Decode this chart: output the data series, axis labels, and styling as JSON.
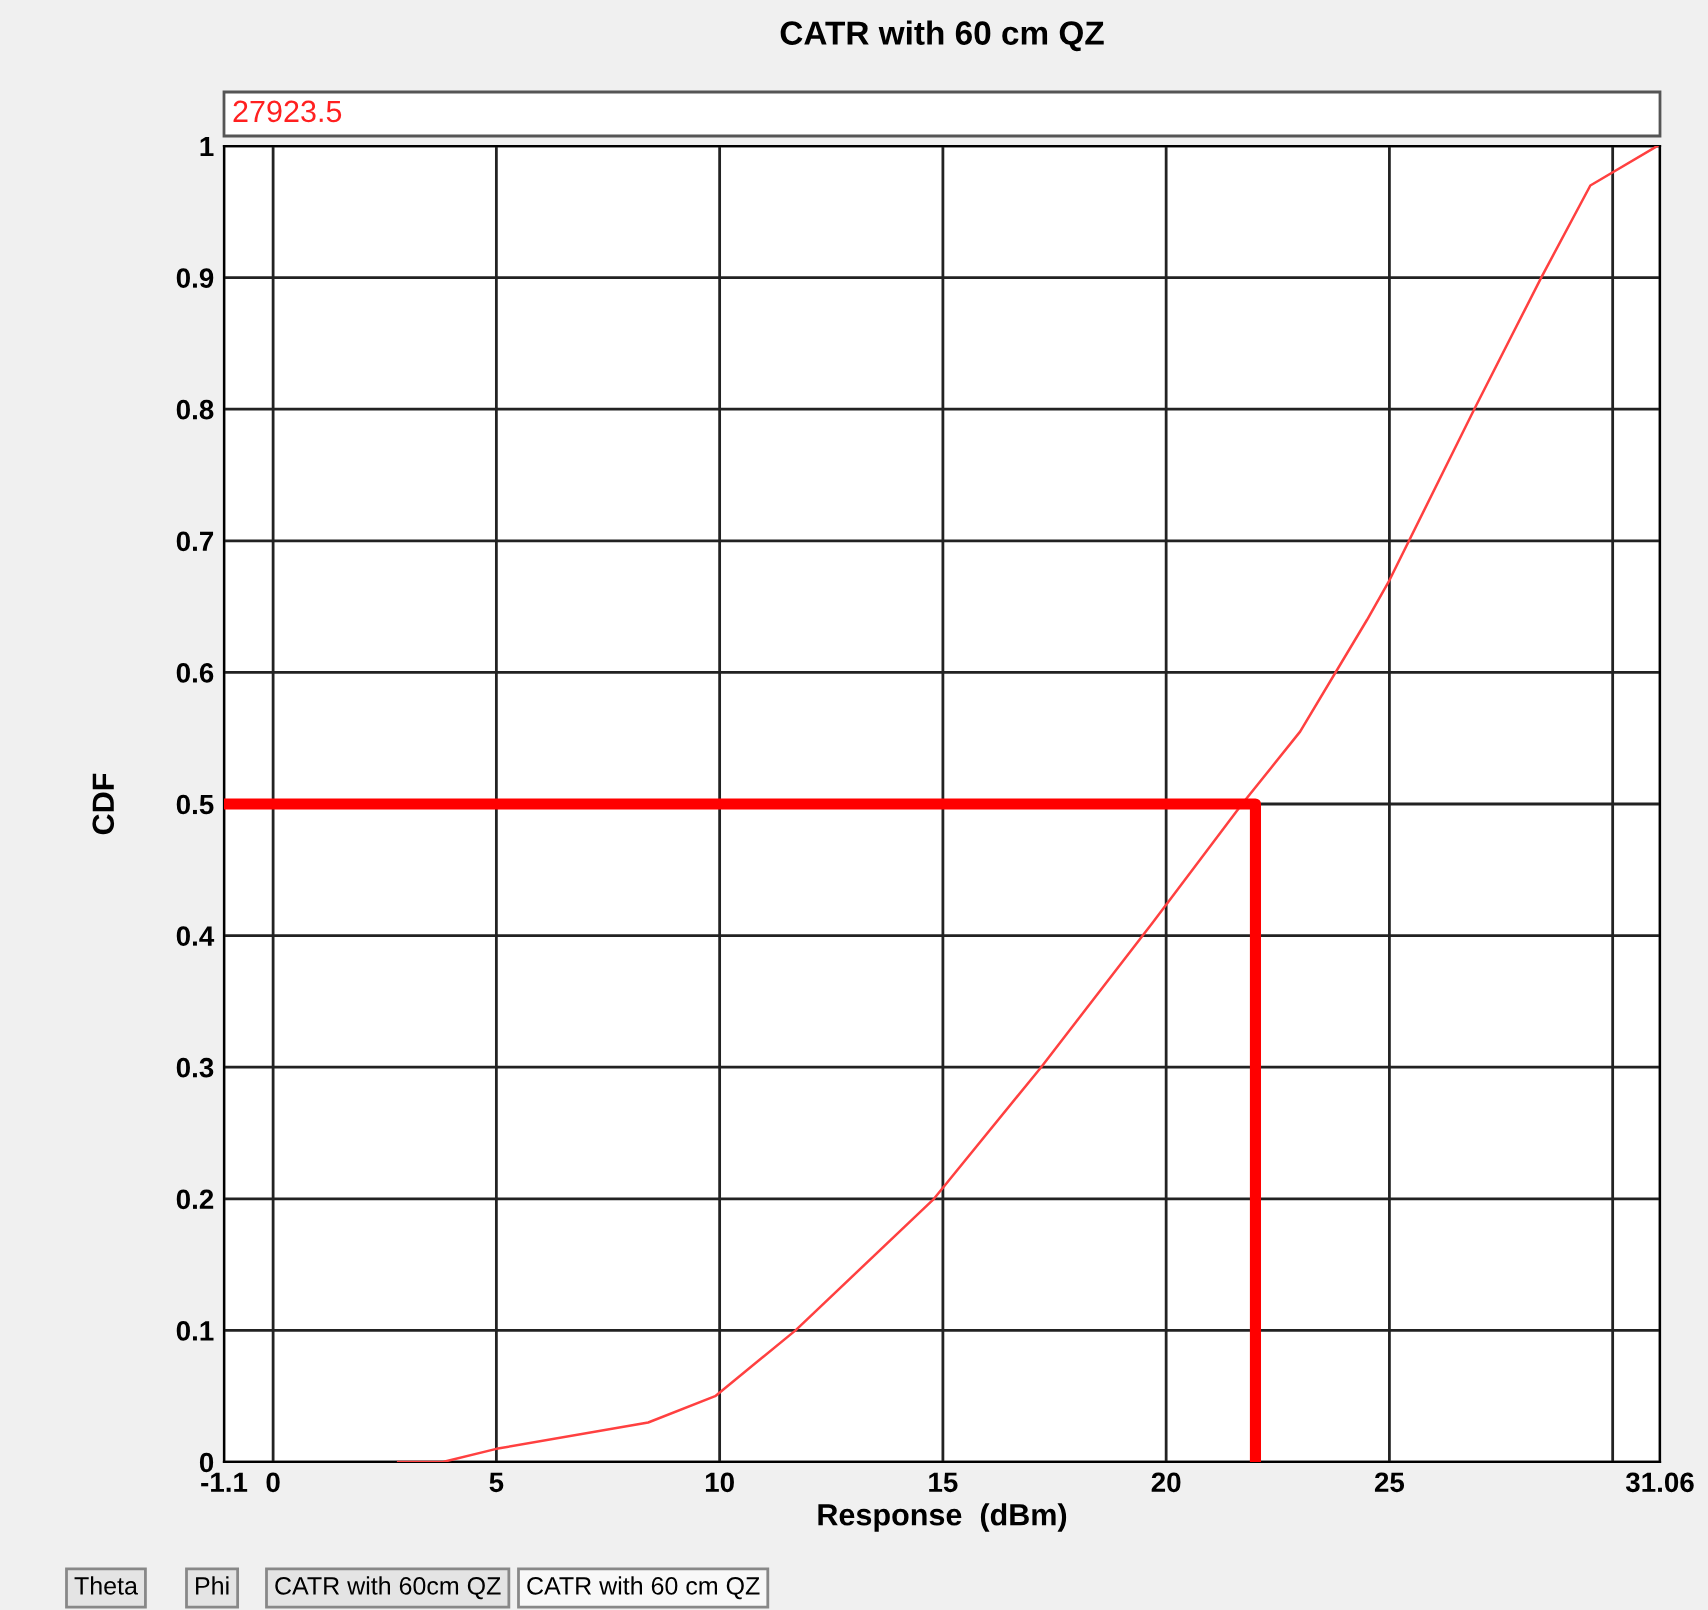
{
  "chart_data": {
    "type": "line",
    "title": "CATR with 60 cm QZ",
    "xlabel": "Response  (dBm)",
    "ylabel": "CDF",
    "annotations": [
      "27923.5",
      "Theta",
      "Phi",
      "CATR with 60cm QZ",
      "CATR with 60 cm QZ"
    ],
    "xlim": [
      -1.1,
      31.06
    ],
    "ylim": [
      0,
      1
    ],
    "xticks": [
      {
        "value": -1.1,
        "label": "-1.1"
      },
      0,
      5,
      10,
      15,
      20,
      25,
      {
        "value": 30,
        "label": null
      },
      {
        "value": 31.06,
        "label": "31.06"
      }
    ],
    "yticks": [
      0,
      0.1,
      0.2,
      0.3,
      0.4,
      0.5,
      0.6,
      0.7,
      0.8,
      0.9,
      1
    ],
    "grid": true,
    "marker": "none",
    "line_style": "solid",
    "series": [
      {
        "color": "#ff4040",
        "x": [
          2.8,
          3.8,
          5.0,
          8.4,
          9.9,
          11.7,
          14.8,
          17.2,
          19.7,
          21.7,
          23.0,
          24.5,
          25.0,
          26.9,
          28.4,
          29.5,
          31.0
        ],
        "values": [
          0,
          0,
          0.01,
          0.03,
          0.05,
          0.1,
          0.2,
          0.3,
          0.41,
          0.5,
          0.555,
          0.64,
          0.67,
          0.8,
          0.9,
          0.97,
          1.0
        ]
      },
      {
        "color": "#ff0000",
        "x": [
          -1.1,
          22,
          22
        ],
        "values": [
          0.5,
          0.5,
          0
        ]
      }
    ]
  }
}
